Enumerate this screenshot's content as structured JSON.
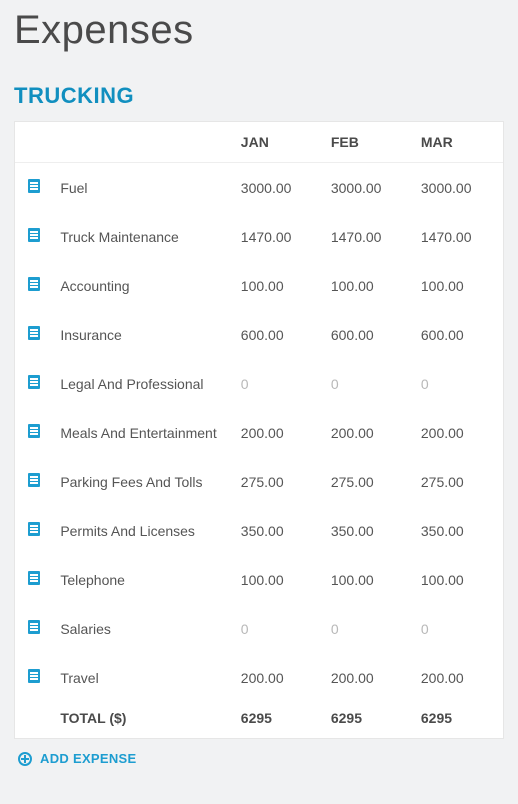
{
  "page": {
    "title": "Expenses"
  },
  "section": {
    "title": "TRUCKING"
  },
  "table": {
    "columns": [
      "JAN",
      "FEB",
      "MAR"
    ],
    "rows": [
      {
        "name": "Fuel",
        "values": [
          "3000.00",
          "3000.00",
          "3000.00"
        ]
      },
      {
        "name": "Truck Maintenance",
        "values": [
          "1470.00",
          "1470.00",
          "1470.00"
        ]
      },
      {
        "name": "Accounting",
        "values": [
          "100.00",
          "100.00",
          "100.00"
        ]
      },
      {
        "name": "Insurance",
        "values": [
          "600.00",
          "600.00",
          "600.00"
        ]
      },
      {
        "name": "Legal And Professional",
        "values": [
          "0",
          "0",
          "0"
        ]
      },
      {
        "name": "Meals And Entertainment",
        "values": [
          "200.00",
          "200.00",
          "200.00"
        ]
      },
      {
        "name": "Parking Fees And Tolls",
        "values": [
          "275.00",
          "275.00",
          "275.00"
        ]
      },
      {
        "name": "Permits And Licenses",
        "values": [
          "350.00",
          "350.00",
          "350.00"
        ]
      },
      {
        "name": "Telephone",
        "values": [
          "100.00",
          "100.00",
          "100.00"
        ]
      },
      {
        "name": "Salaries",
        "values": [
          "0",
          "0",
          "0"
        ]
      },
      {
        "name": "Travel",
        "values": [
          "200.00",
          "200.00",
          "200.00"
        ]
      }
    ],
    "total": {
      "label": "TOTAL ($)",
      "values": [
        "6295",
        "6295",
        "6295"
      ]
    }
  },
  "actions": {
    "add_expense_label": "ADD EXPENSE"
  },
  "style": {
    "accent_color": "#1d9dd0",
    "header_color": "#118fbf",
    "page_bg": "#f1f2f3",
    "card_bg": "#ffffff",
    "text_color": "#4a4a4a",
    "muted_color": "#b8b8b8",
    "border_color": "#e6e6e6",
    "font_family": "Segoe UI, Helvetica Neue, Arial, sans-serif",
    "title_fontsize": 40,
    "section_fontsize": 22,
    "body_fontsize": 14
  }
}
